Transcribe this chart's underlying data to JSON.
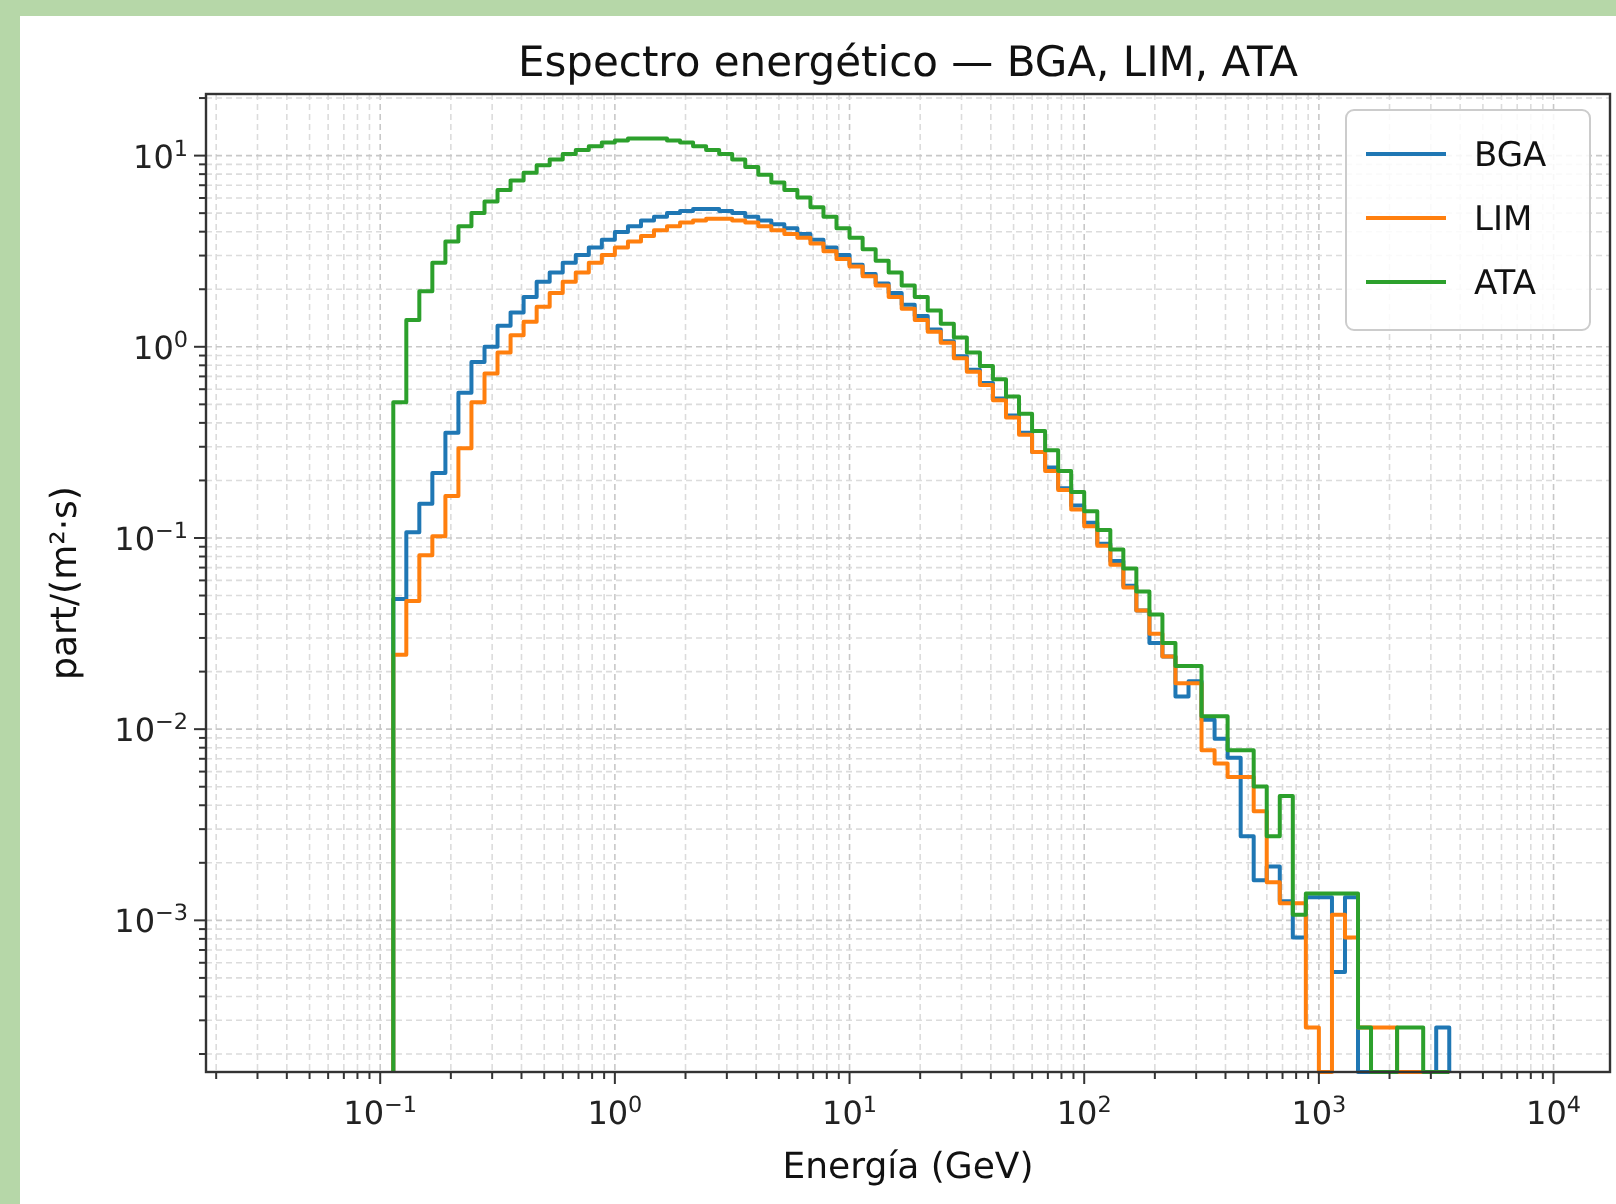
{
  "chart_data": {
    "type": "histogram",
    "title": "Espectro energético — BGA, LIM, ATA",
    "xlabel": "Energía (GeV)",
    "ylabel": "part/(m²·s)",
    "log": "xy",
    "grid": true,
    "legend": "top right",
    "line_style": "solid",
    "bins": [
      0.1137,
      0.1292,
      0.1468,
      0.1668,
      0.1896,
      0.2154,
      0.2448,
      0.2783,
      0.3162,
      0.3594,
      0.4084,
      0.4642,
      0.5275,
      0.5995,
      0.6813,
      0.7743,
      0.8799,
      1,
      1.137,
      1.292,
      1.468,
      1.668,
      1.896,
      2.154,
      2.448,
      2.783,
      3.162,
      3.594,
      4.084,
      4.642,
      5.275,
      5.995,
      6.813,
      7.743,
      8.799,
      10,
      11.37,
      12.92,
      14.68,
      16.68,
      18.96,
      21.54,
      24.48,
      27.83,
      31.62,
      35.94,
      40.84,
      46.42,
      52.75,
      59.95,
      68.13,
      77.43,
      87.99,
      100,
      113.7,
      129.2,
      146.8,
      166.8,
      189.6,
      215.4,
      244.8,
      278.3,
      316.2,
      359.4,
      408.4,
      464.2,
      527.5,
      599.5,
      681.3,
      774.3,
      879.9,
      1000,
      1137,
      1292,
      1468,
      1668,
      1896,
      2154,
      2448,
      2783,
      3162,
      3594
    ],
    "series": [
      {
        "name": "BGA",
        "color": "#1f77b4",
        "values": [
          0.0479,
          0.107,
          0.151,
          0.219,
          0.355,
          0.575,
          0.832,
          1.0,
          1.29,
          1.51,
          1.82,
          2.19,
          2.45,
          2.75,
          3.02,
          3.31,
          3.63,
          3.98,
          4.27,
          4.57,
          4.79,
          5.01,
          5.13,
          5.25,
          5.25,
          5.13,
          5.01,
          4.79,
          4.57,
          4.37,
          4.17,
          3.89,
          3.63,
          3.31,
          3.02,
          2.69,
          2.4,
          2.14,
          1.91,
          1.66,
          1.45,
          1.23,
          1.07,
          0.891,
          0.759,
          0.646,
          0.537,
          0.437,
          0.355,
          0.282,
          0.234,
          0.182,
          0.148,
          0.12,
          0.0933,
          0.0759,
          0.0562,
          0.0417,
          0.0282,
          0.024,
          0.0148,
          0.0178,
          0.0112,
          0.00891,
          0.00708,
          0.00275,
          0.00162,
          0.00191,
          0.00126,
          0.000813,
          0.00132,
          0.00132,
          0.000537,
          0.00132,
          null,
          null,
          null,
          null,
          null,
          null,
          0.000275
        ]
      },
      {
        "name": "LIM",
        "color": "#ff7f0e",
        "values": [
          0.0245,
          0.0468,
          0.0813,
          0.102,
          0.166,
          0.295,
          0.513,
          0.724,
          0.933,
          1.15,
          1.35,
          1.62,
          1.91,
          2.19,
          2.45,
          2.75,
          3.02,
          3.31,
          3.55,
          3.8,
          4.07,
          4.27,
          4.47,
          4.57,
          4.68,
          4.68,
          4.57,
          4.47,
          4.27,
          4.07,
          3.89,
          3.72,
          3.47,
          3.16,
          2.88,
          2.63,
          2.34,
          2.09,
          1.82,
          1.58,
          1.38,
          1.2,
          1.05,
          0.871,
          0.741,
          0.631,
          0.525,
          0.427,
          0.347,
          0.282,
          0.224,
          0.178,
          0.141,
          0.115,
          0.0912,
          0.0724,
          0.055,
          0.0417,
          0.0316,
          0.024,
          0.0174,
          0.0174,
          0.00776,
          0.00661,
          0.00562,
          0.00562,
          0.00372,
          0.00158,
          0.00123,
          0.00123,
          0.000275,
          null,
          0.00107,
          0.000813,
          0.000275,
          0.000275,
          0.000275,
          null,
          null,
          null,
          null
        ]
      },
      {
        "name": "ATA",
        "color": "#2ca02c",
        "values": [
          0.513,
          1.38,
          1.95,
          2.75,
          3.55,
          4.27,
          5.01,
          5.75,
          6.61,
          7.41,
          8.13,
          8.91,
          9.55,
          10.2,
          10.7,
          11.2,
          11.7,
          12.0,
          12.3,
          12.3,
          12.3,
          12.0,
          11.7,
          11.2,
          10.7,
          10.2,
          9.55,
          8.71,
          7.94,
          7.24,
          6.61,
          6.03,
          5.37,
          4.79,
          4.17,
          3.72,
          3.24,
          2.82,
          2.45,
          2.09,
          1.82,
          1.55,
          1.32,
          1.12,
          0.933,
          0.794,
          0.676,
          0.55,
          0.447,
          0.363,
          0.288,
          0.224,
          0.174,
          0.138,
          0.11,
          0.0871,
          0.0692,
          0.0525,
          0.0398,
          0.0282,
          0.0214,
          0.0214,
          0.0117,
          0.0117,
          0.00776,
          0.00776,
          0.00501,
          0.00275,
          0.00447,
          0.00107,
          0.00138,
          0.00138,
          0.00138,
          0.00138,
          0.000275,
          null,
          null,
          0.000275,
          0.000275,
          null,
          null
        ]
      }
    ],
    "xlim": [
      0.0181,
      17400
    ],
    "ylim": [
      0.000161,
      21.0
    ],
    "xticks": [
      {
        "value": 0.02,
        "label": null
      },
      {
        "value": 0.03,
        "label": null
      },
      {
        "value": 0.04,
        "label": null
      },
      {
        "value": 0.05,
        "label": null
      },
      {
        "value": 0.06,
        "label": null
      },
      {
        "value": 0.07,
        "label": null
      },
      {
        "value": 0.08,
        "label": null
      },
      {
        "value": 0.09,
        "label": null
      },
      {
        "value": 0.1,
        "label": "10$^{−1}$"
      },
      {
        "value": 0.2,
        "label": null
      },
      {
        "value": 0.3,
        "label": null
      },
      {
        "value": 0.4,
        "label": null
      },
      {
        "value": 0.5,
        "label": null
      },
      {
        "value": 0.6,
        "label": null
      },
      {
        "value": 0.7,
        "label": null
      },
      {
        "value": 0.8,
        "label": null
      },
      {
        "value": 0.9,
        "label": null
      },
      {
        "value": 1,
        "label": "10$^{0}$"
      },
      {
        "value": 2,
        "label": null
      },
      {
        "value": 3,
        "label": null
      },
      {
        "value": 4,
        "label": null
      },
      {
        "value": 5,
        "label": null
      },
      {
        "value": 6,
        "label": null
      },
      {
        "value": 7,
        "label": null
      },
      {
        "value": 8,
        "label": null
      },
      {
        "value": 9,
        "label": null
      },
      {
        "value": 10,
        "label": "10$^{1}$"
      },
      {
        "value": 20,
        "label": null
      },
      {
        "value": 30,
        "label": null
      },
      {
        "value": 40,
        "label": null
      },
      {
        "value": 50,
        "label": null
      },
      {
        "value": 60,
        "label": null
      },
      {
        "value": 70,
        "label": null
      },
      {
        "value": 80,
        "label": null
      },
      {
        "value": 90,
        "label": null
      },
      {
        "value": 100,
        "label": "10$^{2}$"
      },
      {
        "value": 200,
        "label": null
      },
      {
        "value": 300,
        "label": null
      },
      {
        "value": 400,
        "label": null
      },
      {
        "value": 500,
        "label": null
      },
      {
        "value": 600,
        "label": null
      },
      {
        "value": 700,
        "label": null
      },
      {
        "value": 800,
        "label": null
      },
      {
        "value": 900,
        "label": null
      },
      {
        "value": 1000,
        "label": "10$^{3}$"
      },
      {
        "value": 2000,
        "label": null
      },
      {
        "value": 3000,
        "label": null
      },
      {
        "value": 4000,
        "label": null
      },
      {
        "value": 5000,
        "label": null
      },
      {
        "value": 6000,
        "label": null
      },
      {
        "value": 7000,
        "label": null
      },
      {
        "value": 8000,
        "label": null
      },
      {
        "value": 9000,
        "label": null
      },
      {
        "value": 10000,
        "label": "10$^{4}$"
      }
    ],
    "yticks": [
      {
        "value": 0.0002,
        "label": null
      },
      {
        "value": 0.0003,
        "label": null
      },
      {
        "value": 0.0004,
        "label": null
      },
      {
        "value": 0.0005,
        "label": null
      },
      {
        "value": 0.0006,
        "label": null
      },
      {
        "value": 0.0007,
        "label": null
      },
      {
        "value": 0.0008,
        "label": null
      },
      {
        "value": 0.0009,
        "label": null
      },
      {
        "value": 0.001,
        "label": "10$^{−3}$"
      },
      {
        "value": 0.002,
        "label": null
      },
      {
        "value": 0.003,
        "label": null
      },
      {
        "value": 0.004,
        "label": null
      },
      {
        "value": 0.005,
        "label": null
      },
      {
        "value": 0.006,
        "label": null
      },
      {
        "value": 0.007,
        "label": null
      },
      {
        "value": 0.008,
        "label": null
      },
      {
        "value": 0.009,
        "label": null
      },
      {
        "value": 0.01,
        "label": "10$^{−2}$"
      },
      {
        "value": 0.02,
        "label": null
      },
      {
        "value": 0.03,
        "label": null
      },
      {
        "value": 0.04,
        "label": null
      },
      {
        "value": 0.05,
        "label": null
      },
      {
        "value": 0.06,
        "label": null
      },
      {
        "value": 0.07,
        "label": null
      },
      {
        "value": 0.08,
        "label": null
      },
      {
        "value": 0.09,
        "label": null
      },
      {
        "value": 0.1,
        "label": "10$^{−1}$"
      },
      {
        "value": 0.2,
        "label": null
      },
      {
        "value": 0.3,
        "label": null
      },
      {
        "value": 0.4,
        "label": null
      },
      {
        "value": 0.5,
        "label": null
      },
      {
        "value": 0.6,
        "label": null
      },
      {
        "value": 0.7,
        "label": null
      },
      {
        "value": 0.8,
        "label": null
      },
      {
        "value": 0.9,
        "label": null
      },
      {
        "value": 1,
        "label": "10$^{0}$"
      },
      {
        "value": 2,
        "label": null
      },
      {
        "value": 3,
        "label": null
      },
      {
        "value": 4,
        "label": null
      },
      {
        "value": 5,
        "label": null
      },
      {
        "value": 6,
        "label": null
      },
      {
        "value": 7,
        "label": null
      },
      {
        "value": 8,
        "label": null
      },
      {
        "value": 9,
        "label": null
      },
      {
        "value": 10,
        "label": "10$^{1}$"
      },
      {
        "value": 20,
        "label": null
      }
    ]
  }
}
